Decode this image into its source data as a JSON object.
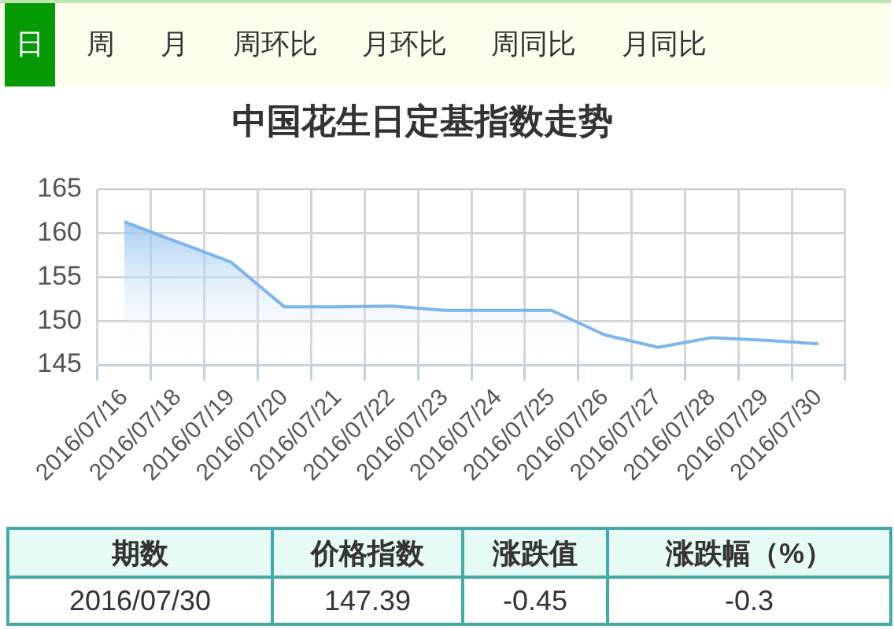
{
  "chart_data": [
    {
      "type": "other",
      "annotations": [
        "日",
        "周",
        "月",
        "周环比",
        "月环比",
        "周同比",
        "月同比"
      ]
    },
    {
      "type": "area",
      "title": "中国花生日定基指数走势",
      "categories": [
        "2016/07/16",
        "2016/07/18",
        "2016/07/19",
        "2016/07/20",
        "2016/07/21",
        "2016/07/22",
        "2016/07/23",
        "2016/07/24",
        "2016/07/25",
        "2016/07/26",
        "2016/07/27",
        "2016/07/28",
        "2016/07/29",
        "2016/07/30"
      ],
      "series": [
        {
          "color": "#7cb5ec",
          "values": [
            161.3,
            159.0,
            156.7,
            151.6,
            151.6,
            151.7,
            151.2,
            151.2,
            151.2,
            148.4,
            147.0,
            148.1,
            147.8,
            147.4
          ]
        }
      ],
      "ylim": [
        145,
        165
      ],
      "yticks": [
        145,
        150,
        155,
        160,
        165
      ],
      "grid": true,
      "marker": "none"
    },
    {
      "type": "other",
      "annotations": [
        "期数",
        "价格指数",
        "涨跌值",
        "涨跌幅（%）",
        "2016/07/30",
        "147.39",
        "-0.45",
        "-0.3"
      ]
    }
  ]
}
